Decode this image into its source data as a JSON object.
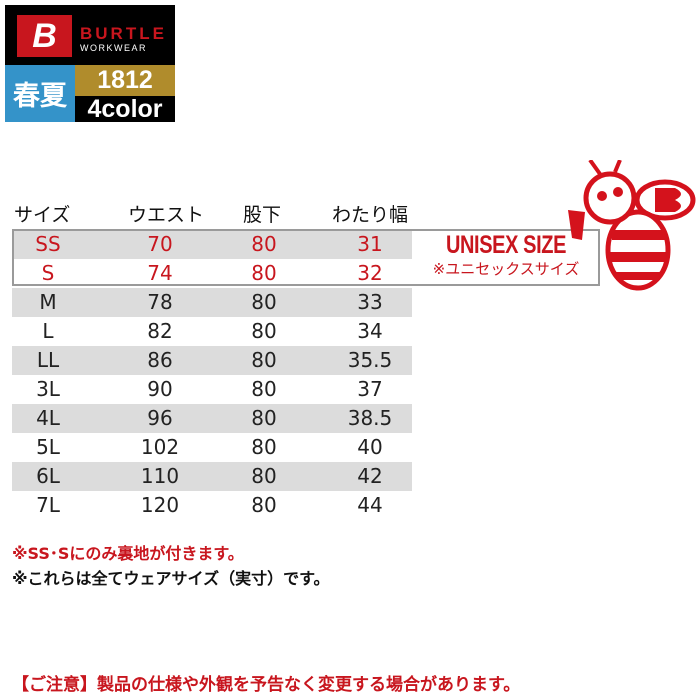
{
  "logo": {
    "brand": "BURTLE",
    "brand_sub": "WORKWEAR",
    "mark": "B"
  },
  "badges": {
    "season": "春夏",
    "model": "1812",
    "colors": "4color"
  },
  "table": {
    "headers": [
      "サイズ",
      "ウエスト",
      "股下",
      "わたり幅"
    ],
    "rows": [
      [
        "SS",
        "70",
        "80",
        "31"
      ],
      [
        "S",
        "74",
        "80",
        "32"
      ],
      [
        "M",
        "78",
        "80",
        "33"
      ],
      [
        "L",
        "82",
        "80",
        "34"
      ],
      [
        "LL",
        "86",
        "80",
        "35.5"
      ],
      [
        "3L",
        "90",
        "80",
        "37"
      ],
      [
        "4L",
        "96",
        "80",
        "38.5"
      ],
      [
        "5L",
        "102",
        "80",
        "40"
      ],
      [
        "6L",
        "110",
        "80",
        "42"
      ],
      [
        "7L",
        "120",
        "80",
        "44"
      ]
    ]
  },
  "unisex": {
    "title": "UNISEX SIZE",
    "subtitle": "※ユニセックスサイズ"
  },
  "notes": [
    "※SS･Sにのみ裏地が付きます。",
    "※これらは全てウェアサイズ（実寸）です。"
  ],
  "caution": "【ご注意】製品の仕様や外観を予告なく変更する場合があります。",
  "colors": {
    "accent_red": "#c8161e",
    "season_blue": "#3493c9",
    "model_gold": "#b08c2c",
    "row_gray": "#dcdcdc"
  }
}
